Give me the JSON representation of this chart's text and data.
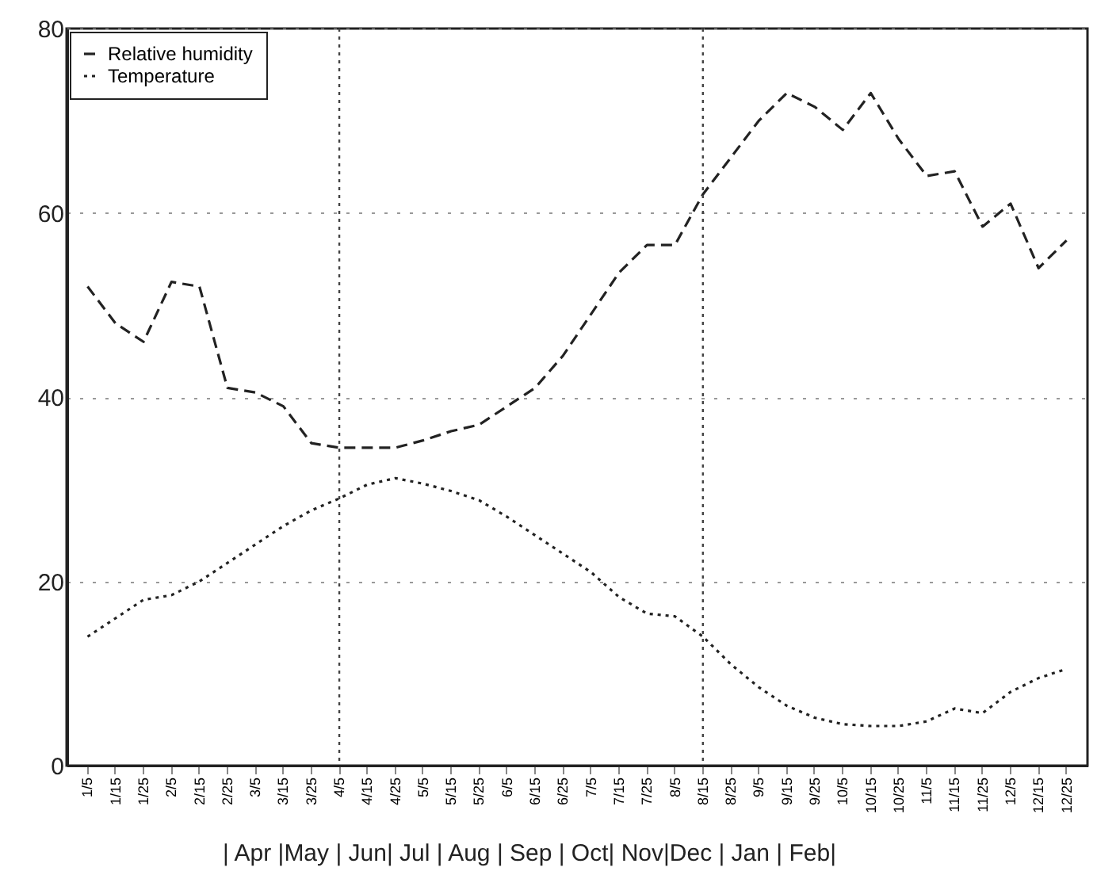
{
  "chart_data": {
    "type": "line",
    "categories": [
      "1/5",
      "1/15",
      "1/25",
      "2/5",
      "2/15",
      "2/25",
      "3/5",
      "3/15",
      "3/25",
      "4/5",
      "4/15",
      "4/25",
      "5/5",
      "5/15",
      "5/25",
      "6/5",
      "6/15",
      "6/25",
      "7/5",
      "7/15",
      "7/25",
      "8/5",
      "8/15",
      "8/25",
      "9/5",
      "9/15",
      "9/25",
      "10/5",
      "10/15",
      "10/25",
      "11/5",
      "11/15",
      "11/25",
      "12/5",
      "12/15",
      "12/25"
    ],
    "series": [
      {
        "name": "Relative humidity",
        "color": "#222222",
        "line_style": "dashed",
        "values": [
          52,
          48,
          46,
          52.5,
          52,
          41,
          40.5,
          39,
          35,
          34.5,
          34.5,
          34.5,
          35.3,
          36.3,
          37,
          39,
          41,
          44.5,
          49,
          53.5,
          56.5,
          56.5,
          62,
          66,
          70,
          73,
          71.5,
          69,
          73,
          68,
          64,
          64.5,
          58.5,
          61,
          54,
          57
        ]
      },
      {
        "name": "Temperature",
        "color": "#222222",
        "line_style": "dotted",
        "values": [
          14,
          16,
          18,
          18.5,
          20,
          22,
          24,
          26,
          27.7,
          29,
          30.5,
          31.2,
          30.6,
          29.8,
          28.8,
          27,
          25,
          23,
          21,
          18.3,
          16.5,
          16.2,
          14,
          11,
          8.5,
          6.5,
          5.2,
          4.5,
          4.3,
          4.3,
          4.8,
          6.2,
          5.7,
          8,
          9.5,
          10.5
        ]
      }
    ],
    "ylim": [
      0,
      80
    ],
    "yticks": [
      0,
      20,
      40,
      60,
      80
    ],
    "grid": "y",
    "legend": "top left",
    "marker": "none",
    "ref_lines": [
      {
        "axis": "x",
        "value": "4/5",
        "line_style": "dotted",
        "color": "#444444"
      },
      {
        "axis": "x",
        "value": "8/15",
        "line_style": "dotted",
        "color": "#444444"
      }
    ],
    "annotations": [
      "| Apr |May | Jun| Jul | Aug | Sep | Oct| Nov|Dec | Jan | Feb|"
    ]
  }
}
